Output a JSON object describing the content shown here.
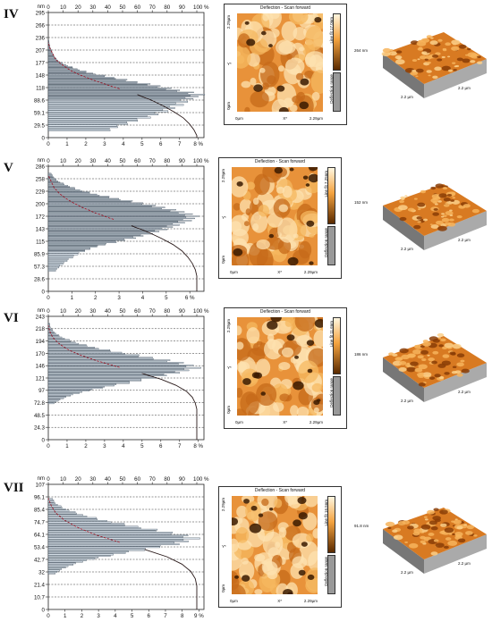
{
  "chart_data": [
    {
      "panel": "IV",
      "type": "bar",
      "orientation": "horizontal",
      "ylabel_unit": "nm",
      "y_ticks": [
        "0",
        "29.5",
        "59.1",
        "88.6",
        "118",
        "148",
        "177",
        "207",
        "236",
        "266",
        "295"
      ],
      "ylim": [
        0,
        295
      ],
      "x_bottom_ticks": [
        "0",
        "1",
        "2",
        "3",
        "4",
        "5",
        "6",
        "7",
        "8 %"
      ],
      "xlim_bottom": [
        0,
        8.3
      ],
      "x_top_ticks": [
        "0",
        "10",
        "20",
        "30",
        "40",
        "50",
        "60",
        "70",
        "80",
        "90",
        "100 %"
      ],
      "bins_nm": [
        15,
        30,
        45,
        60,
        75,
        90,
        100,
        110,
        120,
        130,
        140,
        150,
        160,
        170,
        180,
        190,
        200,
        210,
        220
      ],
      "values_percent": [
        3.2,
        4.1,
        5.3,
        6.2,
        7.0,
        7.5,
        8.1,
        6.8,
        5.8,
        4.6,
        3.4,
        2.3,
        1.5,
        0.9,
        0.5,
        0.3,
        0.2,
        0.1,
        0.05
      ],
      "cumulative_percent": [
        0,
        2,
        5,
        9,
        15,
        22,
        30,
        40,
        52,
        64,
        75,
        84,
        90,
        95,
        97,
        99,
        100
      ],
      "afm": {
        "title": "Deflection - Scan forward",
        "x0": "0µm",
        "x1": "2.29µm",
        "xlabel": "X*",
        "y1": "2.29µm",
        "y0": "0µm",
        "ylabel": "Y*",
        "cbar_top": "Line fit 17.0nm",
        "cbar_bottom": "Deflection range"
      },
      "surface": {
        "height": "264 nm",
        "edge_left": "2.2 µm",
        "edge_right": "2.2 µm"
      }
    },
    {
      "panel": "V",
      "type": "bar",
      "orientation": "horizontal",
      "ylabel_unit": "nm",
      "y_ticks": [
        "0",
        "28.6",
        "57.3",
        "85.9",
        "115",
        "143",
        "172",
        "200",
        "229",
        "258",
        "286"
      ],
      "ylim": [
        0,
        286
      ],
      "x_bottom_ticks": [
        "0",
        "1",
        "2",
        "3",
        "4",
        "5",
        "6 %"
      ],
      "xlim_bottom": [
        0,
        6.6
      ],
      "x_top_ticks": [
        "0",
        "10",
        "20",
        "30",
        "40",
        "50",
        "60",
        "70",
        "80",
        "90",
        "100 %"
      ],
      "bins_nm": [
        45,
        60,
        75,
        90,
        100,
        110,
        120,
        130,
        140,
        150,
        160,
        170,
        180,
        190,
        200,
        210,
        220,
        230,
        240,
        250,
        260
      ],
      "values_percent": [
        0.3,
        0.6,
        1.0,
        1.5,
        2.0,
        2.8,
        3.6,
        4.3,
        4.9,
        5.4,
        5.9,
        6.2,
        5.6,
        4.8,
        3.9,
        2.9,
        2.0,
        1.3,
        0.8,
        0.4,
        0.2
      ],
      "cumulative_percent": [
        0,
        1,
        3,
        6,
        10,
        16,
        24,
        33,
        44,
        56,
        68,
        78,
        86,
        92,
        96,
        98,
        100
      ],
      "afm": {
        "title": "Deflection - Scan forward",
        "x0": "0µm",
        "x1": "2.29µm",
        "xlabel": "X*",
        "y1": "2.29µm",
        "y0": "0µm",
        "ylabel": "Y*",
        "cbar_top": "Line fit 7.25nm",
        "cbar_bottom": "Deflection range"
      },
      "surface": {
        "height": "152 nm",
        "edge_left": "2.2 µm",
        "edge_right": "2.2 µm"
      }
    },
    {
      "panel": "VI",
      "type": "bar",
      "orientation": "horizontal",
      "ylabel_unit": "nm",
      "y_ticks": [
        "0",
        "24.3",
        "48.5",
        "72.8",
        "97",
        "121",
        "146",
        "170",
        "194",
        "218",
        "243"
      ],
      "ylim": [
        0,
        243
      ],
      "x_bottom_ticks": [
        "0",
        "1",
        "2",
        "3",
        "4",
        "5",
        "6",
        "7",
        "8 %"
      ],
      "xlim_bottom": [
        0,
        8.3
      ],
      "x_top_ticks": [
        "0",
        "10",
        "20",
        "30",
        "40",
        "50",
        "60",
        "70",
        "80",
        "90",
        "100 %"
      ],
      "bins_nm": [
        70,
        80,
        90,
        100,
        110,
        120,
        130,
        140,
        150,
        160,
        170,
        180,
        190,
        200,
        210,
        220
      ],
      "values_percent": [
        0.3,
        0.8,
        1.6,
        2.8,
        4.2,
        5.6,
        6.8,
        7.9,
        7.0,
        5.4,
        3.8,
        2.4,
        1.4,
        0.7,
        0.3,
        0.1
      ],
      "cumulative_percent": [
        0,
        1,
        3,
        7,
        14,
        24,
        37,
        52,
        66,
        78,
        87,
        93,
        97,
        99,
        100
      ],
      "afm": {
        "title": "Deflection - Scan forward",
        "x0": "0µm",
        "x1": "2.29µm",
        "xlabel": "X*",
        "y1": "2.29µm",
        "y0": "0µm",
        "ylabel": "Y*",
        "cbar_top": "Line fit 11.6nm",
        "cbar_bottom": "Deflection range"
      },
      "surface": {
        "height": "186 nm",
        "edge_left": "2.2 µm",
        "edge_right": "2.2 µm"
      }
    },
    {
      "panel": "VII",
      "type": "bar",
      "orientation": "horizontal",
      "ylabel_unit": "nm",
      "y_ticks": [
        "0",
        "10.7",
        "21.4",
        "32",
        "42.7",
        "53.4",
        "64.1",
        "74.7",
        "85.4",
        "96.1",
        "107"
      ],
      "ylim": [
        0,
        107
      ],
      "x_bottom_ticks": [
        "0",
        "1",
        "2",
        "3",
        "4",
        "5",
        "6",
        "7",
        "8",
        "9 %"
      ],
      "xlim_bottom": [
        0,
        9.3
      ],
      "x_top_ticks": [
        "0",
        "10",
        "20",
        "30",
        "40",
        "50",
        "60",
        "70",
        "80",
        "90",
        "100 %"
      ],
      "bins_nm": [
        30,
        35,
        40,
        45,
        50,
        55,
        60,
        65,
        70,
        75,
        80,
        85,
        90
      ],
      "values_percent": [
        0.4,
        1.0,
        2.0,
        3.6,
        5.6,
        7.6,
        8.8,
        7.2,
        5.2,
        3.4,
        2.0,
        1.0,
        0.4
      ],
      "cumulative_percent": [
        0,
        1,
        4,
        10,
        20,
        35,
        52,
        68,
        80,
        89,
        95,
        98,
        100
      ],
      "afm": {
        "title": "Deflection - Scan forward",
        "x0": "0µm",
        "x1": "2.29µm",
        "xlabel": "X*",
        "y1": "2.29µm",
        "y0": "0µm",
        "ylabel": "Y*",
        "cbar_top": "Line fit 16.5nm",
        "cbar_bottom": "Deflection range"
      },
      "surface": {
        "height": "91.8 nm",
        "edge_left": "2.2 µm",
        "edge_right": "2.2 µm"
      }
    }
  ],
  "colors": {
    "bar_fill": "#dfe8f0",
    "bar_edge": "#33414f",
    "cumulative": "#9b1c2c",
    "afm_light": "#fde2b0",
    "afm_mid": "#e8923a",
    "afm_dark": "#3a1a00"
  }
}
